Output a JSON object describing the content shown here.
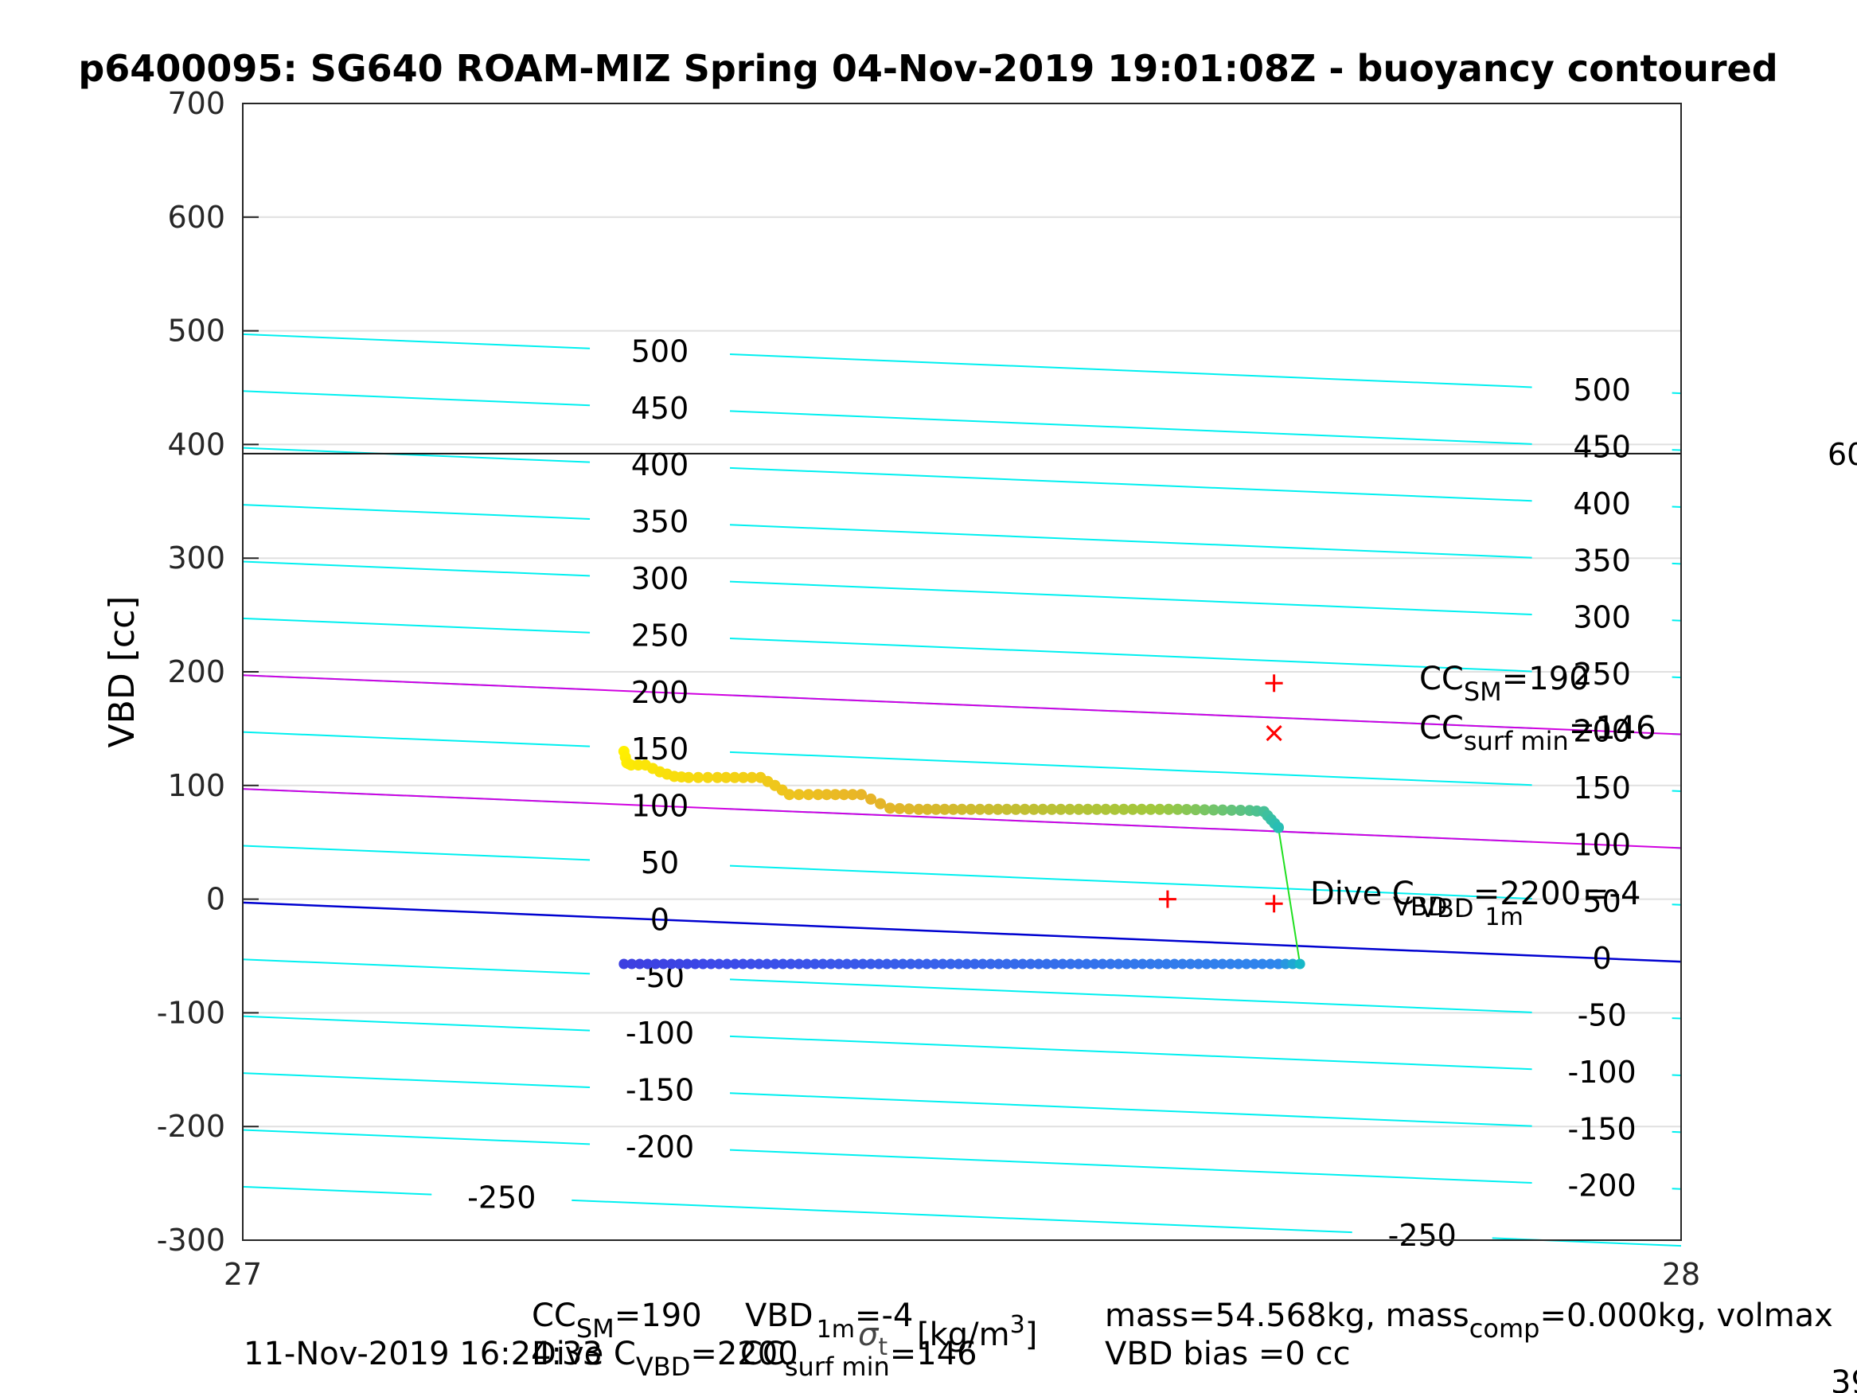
{
  "chart_data": {
    "type": "scatter",
    "title": "p6400095: SG640 ROAM-MIZ Spring 04-Nov-2019 19:01:08Z - buoyancy contoured",
    "ylabel": "VBD [cc]",
    "xlim": [
      27,
      28
    ],
    "ylim": [
      -300,
      700
    ],
    "x_ticks": [
      "27",
      "28"
    ],
    "y_ticks": [
      "700",
      "600",
      "500",
      "400",
      "300",
      "200",
      "100",
      "0",
      "-100",
      "-200",
      "-300"
    ],
    "grid": true,
    "contours": {
      "cyan_levels": [
        -250,
        -200,
        -150,
        -100,
        -50,
        0,
        50,
        100,
        150,
        200,
        250,
        300,
        350,
        400,
        450,
        500
      ],
      "left_labels": [
        "500",
        "450",
        "400",
        "350",
        "300",
        "250",
        "200",
        "150",
        "100",
        "50",
        "0",
        "-50",
        "-100",
        "-150",
        "-200",
        "-250"
      ],
      "right_labels": [
        "500",
        "450",
        "400",
        "350",
        "300",
        "250",
        "200",
        "150",
        "100",
        "50",
        "0",
        "-50",
        "-100",
        "-150",
        "-200",
        "-250"
      ],
      "blue_line_y": [
        -3,
        -55
      ],
      "magenta_lines_y": [
        [
          197,
          145
        ],
        [
          97,
          45
        ]
      ],
      "black_line_y": 392
    },
    "series": [
      {
        "segments": [
          {
            "x": [
              27.265,
              27.32
            ],
            "y": [
              -57,
              -57
            ],
            "color": [
              "#3d3fe0",
              "#3b46e5"
            ]
          },
          {
            "x": [
              27.32,
              27.72
            ],
            "y": [
              -57,
              -57
            ],
            "color": [
              "#3c48e8",
              "#2f86ec"
            ]
          },
          {
            "x": [
              27.72,
              27.735
            ],
            "y": [
              -57,
              -57
            ],
            "color": [
              "#2f86ec",
              "#17b8c8"
            ]
          }
        ],
        "descent": [
          [
            27.265,
            130
          ],
          [
            27.267,
            120
          ],
          [
            27.27,
            118
          ],
          [
            27.28,
            118
          ],
          [
            27.29,
            112
          ],
          [
            27.3,
            108
          ],
          [
            27.31,
            107
          ],
          [
            27.33,
            107
          ],
          [
            27.36,
            107
          ],
          [
            27.37,
            100
          ],
          [
            27.38,
            92
          ],
          [
            27.4,
            92
          ],
          [
            27.43,
            92
          ],
          [
            27.45,
            80
          ],
          [
            27.47,
            79
          ],
          [
            27.5,
            79
          ],
          [
            27.55,
            79
          ],
          [
            27.6,
            79
          ],
          [
            27.65,
            79
          ],
          [
            27.7,
            78
          ],
          [
            27.71,
            77
          ],
          [
            27.715,
            70
          ],
          [
            27.72,
            63
          ]
        ]
      }
    ],
    "red_marks": [
      {
        "kind": "plus",
        "x": 27.717,
        "y": 190
      },
      {
        "kind": "x",
        "x": 27.717,
        "y": 146
      },
      {
        "kind": "plus",
        "x": 27.643,
        "y": 0
      },
      {
        "kind": "plus",
        "x": 27.717,
        "y": -4
      }
    ],
    "annotations": {
      "cc_sm": "CC",
      "cc_sm_sub": "SM",
      "cc_sm_val": "=190",
      "cc_surf": "CC",
      "cc_surf_sub": "surf min",
      "cc_surf_val": "=146",
      "dive_c": "Dive C",
      "dive_c_sub": "VBD",
      "dive_c_val": "=2200",
      "vbd": "VBD",
      "vbd_sub": "1m",
      "vbd_val": "=-4",
      "right_edge_label": "60",
      "contour_200_right": "200"
    },
    "footer": {
      "cc_sm": "CC",
      "cc_sm_sub": "SM",
      "cc_sm_val": "=190",
      "vbd": "VBD",
      "vbd_sub": "1m",
      "vbd_val": "=-4",
      "dive_c": "Dive C",
      "dive_c_sub": "VBD",
      "dive_c_val": "=2200",
      "cc_surf": "CC",
      "cc_surf_sub": "surf min",
      "cc_surf_val": "=146",
      "sigma_label": "σ",
      "sigma_sub": "t",
      "units": "[kg/m",
      "units_sup": "3",
      "units_end": "]",
      "timestamp": "11-Nov-2019 16:24:33",
      "mass": "mass=54.568kg, mass",
      "mass_sub": "comp",
      "mass_rest": "=0.000kg, volmax",
      "vbd_bias": "VBD bias =0 cc",
      "corner": "39"
    },
    "colors": {
      "contour": "#00f0f0",
      "magenta": "#d000e0",
      "blue": "#0000d0",
      "green": "#20e020",
      "red": "#ff0000",
      "grid": "#e0e0e0"
    }
  }
}
